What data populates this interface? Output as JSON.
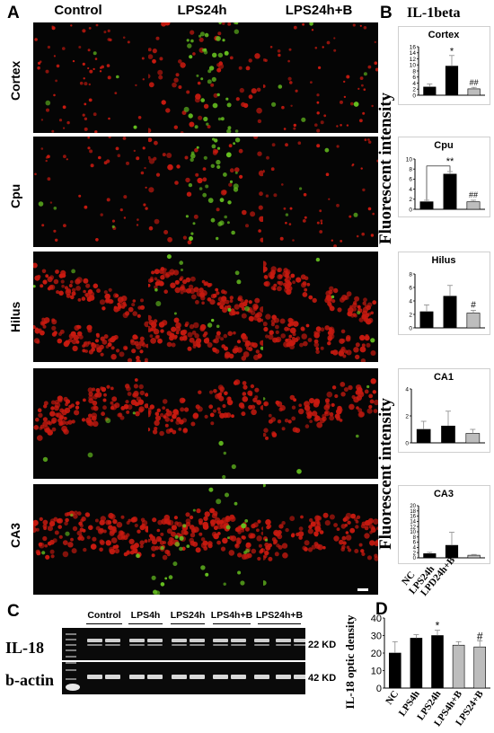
{
  "panels": {
    "A": "A",
    "B": "B",
    "C": "C",
    "D": "D"
  },
  "panel_a": {
    "columns": [
      "Control",
      "LPS24h",
      "LPS24h+B"
    ],
    "rows": [
      "Cortex",
      "Cpu",
      "Hilus",
      "",
      "CA3"
    ]
  },
  "panel_b": {
    "title": "IL-1beta",
    "ylabel_top": "Fluorescent intensity",
    "ylabel_bottom": "Fluorescent intensity",
    "xlabels": [
      "NC",
      "LPS24h",
      "LPD24h+B"
    ]
  },
  "panel_c": {
    "lanes": [
      "Control",
      "LPS4h",
      "LPS24h",
      "LPS4h+B",
      "LPS24h+B"
    ],
    "rows": [
      {
        "label": "IL-18",
        "kd": "22 KD"
      },
      {
        "label": "b-actin",
        "kd": "42 KD"
      }
    ]
  },
  "colors": {
    "nc": "#000000",
    "lps": "#000000",
    "treated": "#bdbdbd",
    "stain_red": "#c81a10",
    "stain_green": "#66c020"
  },
  "chart_data": [
    {
      "type": "bar",
      "title": "Cortex",
      "categories": [
        "NC",
        "LPS24h",
        "LPD24h+B"
      ],
      "values": [
        2.7,
        9.6,
        2.1
      ],
      "errors": [
        1.0,
        3.5,
        0.5
      ],
      "ylim": [
        0,
        16
      ],
      "yticks": [
        "0",
        "2",
        "4",
        "6",
        "8",
        "10",
        "12",
        "14",
        "16"
      ],
      "annotations": [
        "*",
        "##"
      ],
      "grid": false
    },
    {
      "type": "bar",
      "title": "Cpu",
      "categories": [
        "NC",
        "LPS24h",
        "LPD24h+B"
      ],
      "values": [
        1.5,
        7.0,
        1.5
      ],
      "errors": [
        0.3,
        0.5,
        0.3
      ],
      "ylim": [
        0,
        10
      ],
      "yticks": [
        "0",
        "2",
        "4",
        "6",
        "8",
        "10"
      ],
      "annotations": [
        "**",
        "##"
      ],
      "grid": false
    },
    {
      "type": "bar",
      "title": "Hilus",
      "categories": [
        "NC",
        "LPS24h",
        "LPD24h+B"
      ],
      "values": [
        2.4,
        4.7,
        2.2
      ],
      "errors": [
        1.0,
        1.6,
        0.4
      ],
      "ylim": [
        0,
        8
      ],
      "yticks": [
        "0",
        "2",
        "4",
        "6",
        "8"
      ],
      "annotations": [
        "",
        "",
        "#"
      ],
      "grid": false
    },
    {
      "type": "bar",
      "title": "CA1",
      "categories": [
        "NC",
        "LPS24h",
        "LPD24h+B"
      ],
      "values": [
        1.0,
        1.25,
        0.7
      ],
      "errors": [
        0.6,
        1.1,
        0.3
      ],
      "ylim": [
        0,
        4
      ],
      "yticks": [
        "0",
        "2",
        "4"
      ],
      "annotations": [],
      "grid": false
    },
    {
      "type": "bar",
      "title": "CA3",
      "categories": [
        "NC",
        "LPS24h",
        "LPD24h+B"
      ],
      "values": [
        1.6,
        4.8,
        1.0
      ],
      "errors": [
        0.5,
        5.0,
        0.3
      ],
      "ylim": [
        0,
        20
      ],
      "yticks": [
        "0",
        "2",
        "4",
        "6",
        "8",
        "10",
        "12",
        "14",
        "16",
        "18",
        "20"
      ],
      "annotations": [],
      "grid": false
    },
    {
      "type": "bar",
      "title": "",
      "ylabel": "IL-18 optic density",
      "categories": [
        "NC",
        "LPS4h",
        "LPS24h",
        "LPS4h+B",
        "LPS24+B"
      ],
      "values": [
        20,
        28.5,
        30,
        24.5,
        23.5
      ],
      "errors": [
        6.5,
        2,
        3,
        2,
        3.5
      ],
      "ylim": [
        0,
        40
      ],
      "yticks": [
        "0",
        "10",
        "20",
        "30",
        "40"
      ],
      "annotations": [
        "",
        "",
        "*",
        "",
        "#"
      ],
      "grid": false
    }
  ]
}
